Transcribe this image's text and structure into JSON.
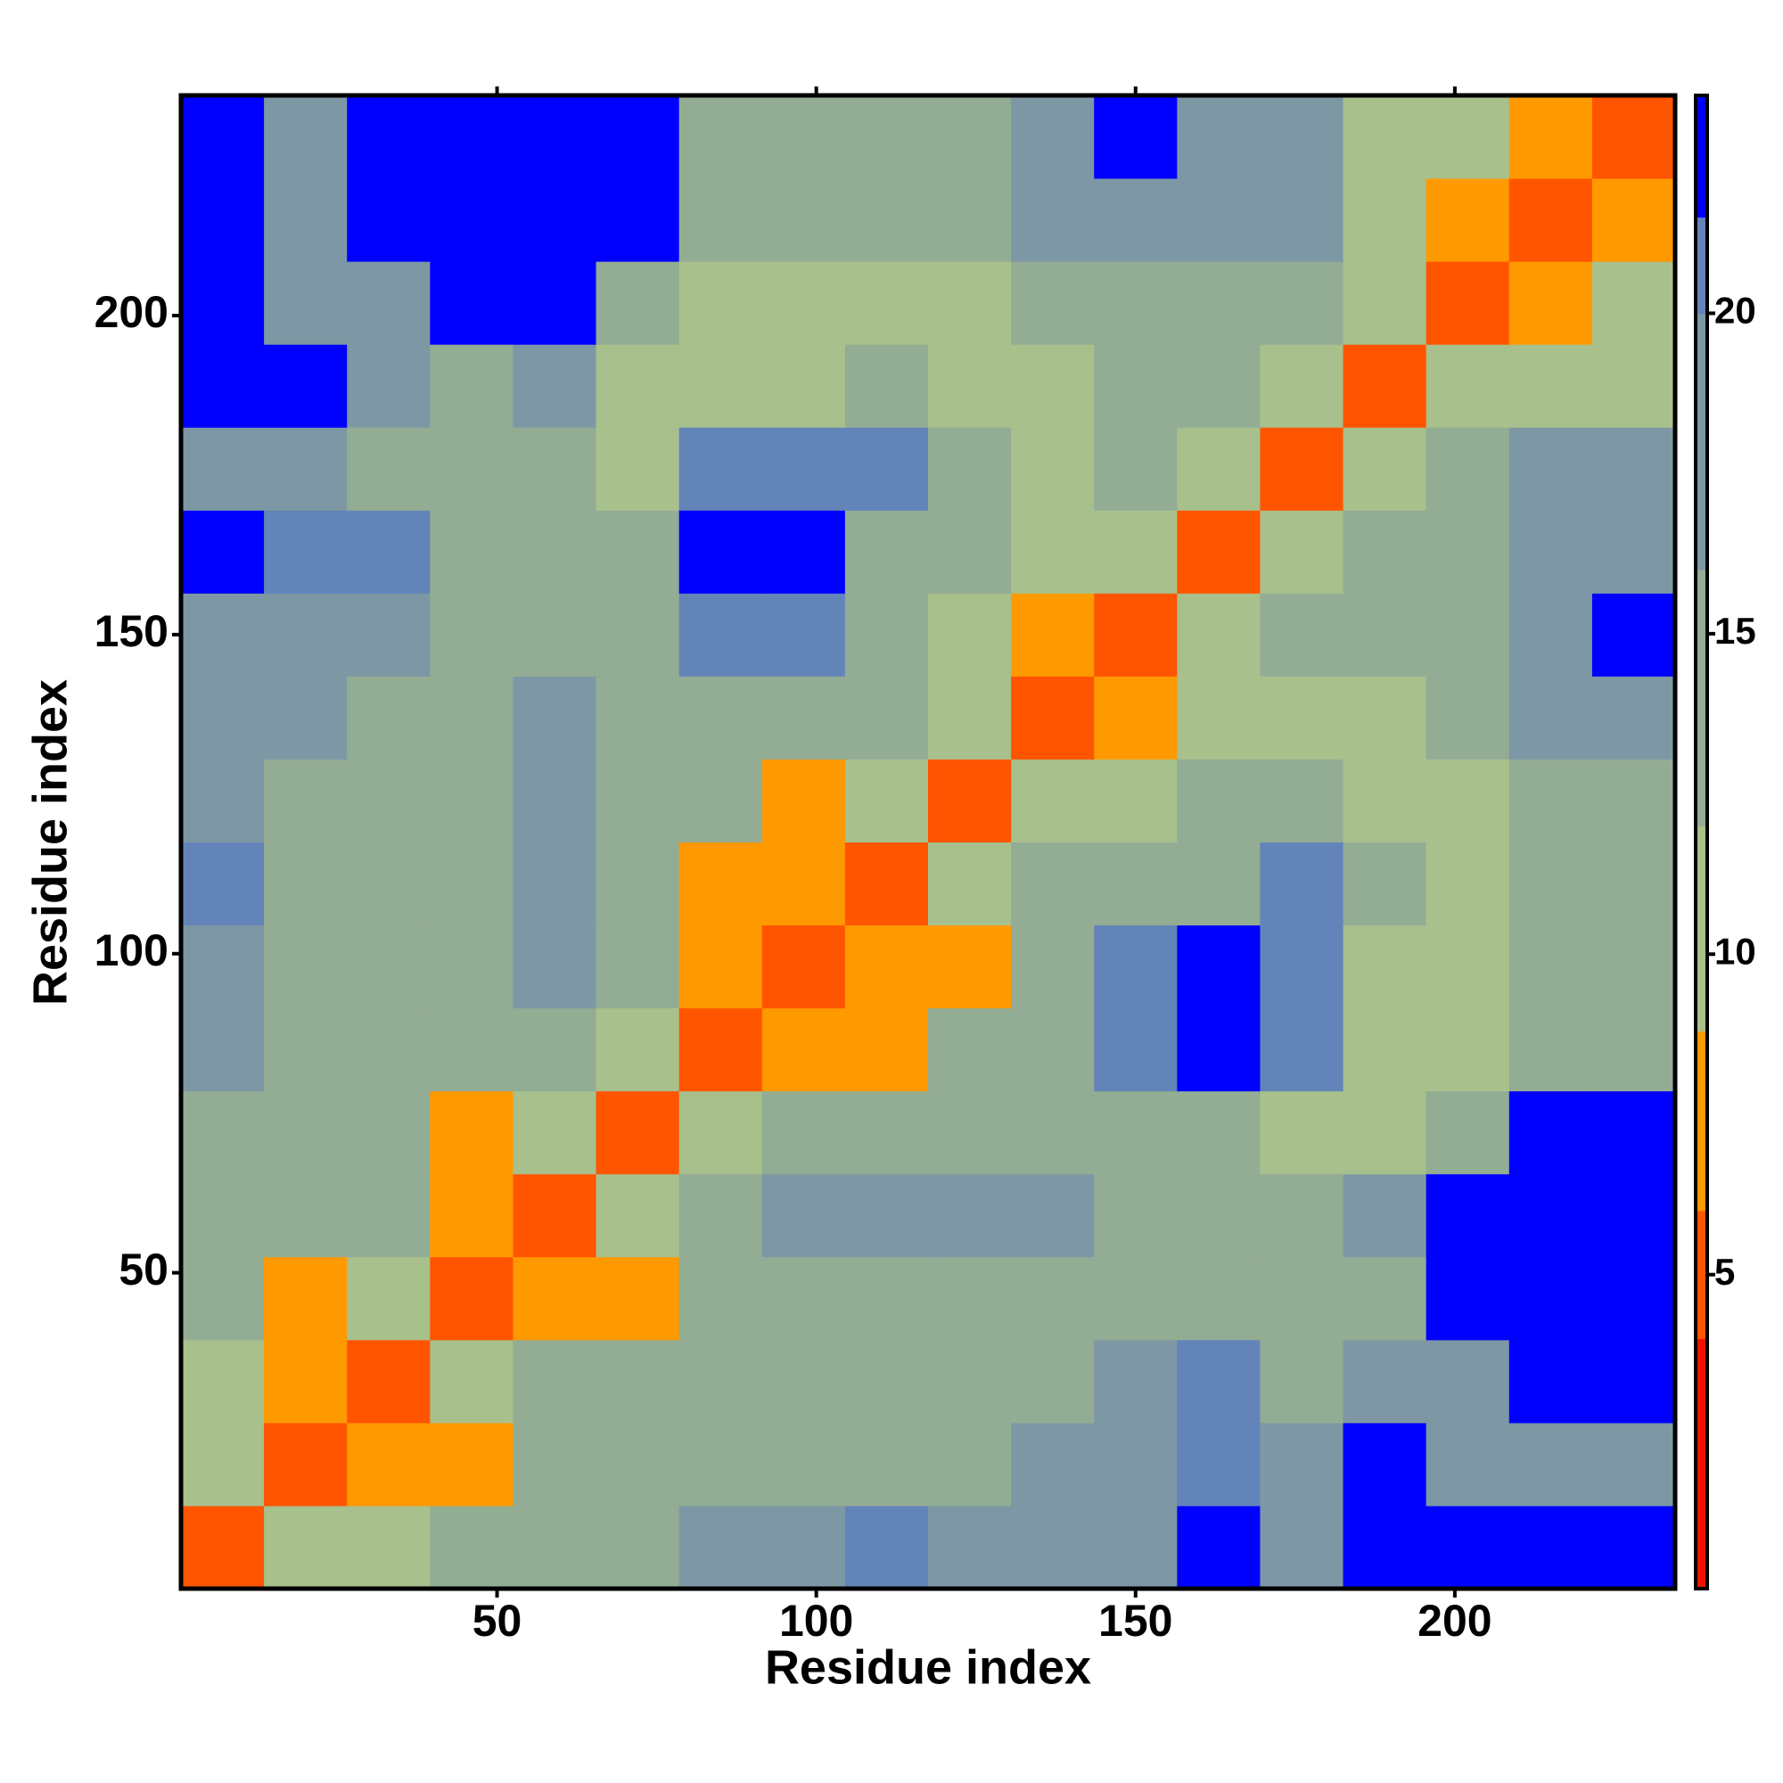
{
  "chart_data": {
    "type": "heatmap",
    "xlabel": "Residue index",
    "ylabel": "Residue index",
    "xlim": [
      0.5,
      234.5
    ],
    "ylim": [
      0.5,
      234.5
    ],
    "xticks": [
      50,
      100,
      150,
      200
    ],
    "yticks": [
      50,
      100,
      150,
      200
    ],
    "xbins": [
      0.5,
      13.5,
      26.5,
      39.5,
      52.5,
      65.5,
      78.5,
      91.5,
      104.5,
      117.5,
      130.5,
      143.5,
      156.5,
      169.5,
      182.5,
      195.5,
      208.5,
      221.5,
      234.5
    ],
    "ybins": [
      0.5,
      13.5,
      26.5,
      39.5,
      52.5,
      65.5,
      78.5,
      91.5,
      104.5,
      117.5,
      130.5,
      143.5,
      156.5,
      169.5,
      182.5,
      195.5,
      208.5,
      221.5,
      234.5
    ],
    "values": [
      [
        4,
        9,
        9,
        12,
        13,
        13,
        16,
        18,
        20,
        19,
        18,
        19,
        23,
        16,
        23,
        23,
        23,
        23
      ],
      [
        9,
        4,
        8,
        8,
        13,
        13,
        14,
        15,
        15,
        15,
        16,
        19,
        20,
        16,
        23,
        17,
        19,
        19
      ],
      [
        9,
        8,
        4,
        9,
        12,
        13,
        14,
        15,
        15,
        15,
        15,
        19,
        20,
        15,
        16,
        17,
        23,
        23
      ],
      [
        12,
        8,
        9,
        4,
        8,
        8,
        14,
        15,
        15,
        15,
        15,
        14,
        12,
        14,
        15,
        23,
        23,
        23
      ],
      [
        13,
        13,
        12,
        8,
        4,
        9,
        13,
        16,
        16,
        16,
        16,
        14,
        12,
        13,
        18,
        23,
        23,
        23
      ],
      [
        13,
        13,
        13,
        8,
        9,
        4,
        9,
        13,
        13,
        13,
        14,
        14,
        13,
        11,
        9,
        13,
        23,
        23
      ],
      [
        16,
        14,
        14,
        14,
        13,
        9,
        4,
        8,
        8,
        13,
        15,
        20,
        23,
        20,
        11,
        10,
        14,
        15
      ],
      [
        18,
        15,
        15,
        15,
        16,
        13,
        8,
        4,
        8,
        8,
        14,
        20,
        23,
        20,
        11,
        11,
        12,
        13
      ],
      [
        20,
        15,
        15,
        15,
        16,
        13,
        8,
        8,
        4,
        9,
        13,
        14,
        15,
        20,
        12,
        11,
        13,
        14
      ],
      [
        19,
        15,
        15,
        15,
        16,
        13,
        13,
        8,
        9,
        4,
        9,
        11,
        13,
        12,
        9,
        10,
        14,
        13
      ],
      [
        18,
        16,
        15,
        15,
        16,
        14,
        15,
        14,
        13,
        9,
        4,
        8,
        11,
        9,
        11,
        14,
        18,
        18
      ],
      [
        19,
        19,
        19,
        14,
        14,
        14,
        20,
        20,
        14,
        11,
        8,
        4,
        9,
        12,
        12,
        14,
        19,
        23
      ],
      [
        23,
        20,
        20,
        12,
        12,
        13,
        23,
        23,
        15,
        13,
        11,
        9,
        4,
        9,
        13,
        15,
        18,
        19
      ],
      [
        16,
        16,
        15,
        14,
        13,
        11,
        20,
        20,
        20,
        12,
        9,
        12,
        9,
        4,
        9,
        14,
        17,
        18
      ],
      [
        23,
        23,
        16,
        15,
        18,
        9,
        11,
        11,
        12,
        9,
        11,
        12,
        13,
        9,
        4,
        10,
        10,
        10
      ],
      [
        23,
        17,
        17,
        23,
        23,
        13,
        10,
        11,
        11,
        10,
        14,
        14,
        15,
        14,
        10,
        4,
        8,
        9
      ],
      [
        23,
        19,
        23,
        23,
        23,
        23,
        14,
        12,
        13,
        14,
        18,
        19,
        18,
        17,
        10,
        8,
        4,
        8
      ],
      [
        23,
        19,
        23,
        23,
        23,
        23,
        15,
        13,
        14,
        13,
        18,
        23,
        19,
        18,
        10,
        9,
        8,
        4
      ]
    ],
    "zlim": [
      0.1,
      23.4
    ],
    "zticks": [
      5,
      10,
      15,
      20
    ],
    "color_breaks": [
      4,
      6,
      8.8,
      12,
      16,
      20,
      21.5
    ],
    "colors": [
      "#ee1100",
      "#ff5500",
      "#ff9900",
      "#a8c08c",
      "#93ac94",
      "#7d98a4",
      "#6384b8",
      "#0000ff"
    ]
  }
}
